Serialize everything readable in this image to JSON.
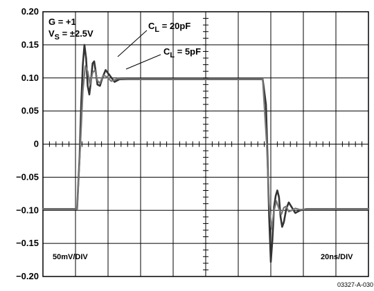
{
  "chart_data": {
    "type": "line",
    "title": "",
    "xlabel": "",
    "ylabel": "",
    "ylim": [
      -0.2,
      0.2
    ],
    "xlim": [
      0,
      200
    ],
    "y_ticks": [
      "0.20",
      "0.15",
      "0.10",
      "0.05",
      "0",
      "−0.05",
      "−0.10",
      "−0.15",
      "−0.20"
    ],
    "grid": true,
    "series": [
      {
        "name": "C_L = 20pF",
        "color": "#333333",
        "x": [
          0,
          21,
          22.5,
          23.5,
          24.5,
          25.5,
          26.5,
          27.5,
          28.5,
          29.5,
          30.5,
          31.5,
          32.5,
          33.5,
          35,
          36.5,
          38.5,
          41,
          44,
          47,
          52,
          70,
          110,
          135,
          137,
          138,
          139,
          140,
          141,
          142,
          143,
          144,
          145,
          146,
          147,
          148,
          149.5,
          151,
          153,
          155,
          158,
          162,
          200
        ],
        "y": [
          -0.098,
          -0.098,
          -0.02,
          0.06,
          0.12,
          0.15,
          0.13,
          0.088,
          0.075,
          0.095,
          0.122,
          0.125,
          0.108,
          0.09,
          0.088,
          0.1,
          0.112,
          0.104,
          0.094,
          0.098,
          0.098,
          0.098,
          0.098,
          0.098,
          0.06,
          -0.02,
          -0.11,
          -0.178,
          -0.145,
          -0.095,
          -0.078,
          -0.07,
          -0.08,
          -0.11,
          -0.125,
          -0.118,
          -0.098,
          -0.088,
          -0.096,
          -0.104,
          -0.1,
          -0.098,
          -0.098
        ]
      },
      {
        "name": "C_L = 5pF",
        "color": "#777777",
        "x": [
          0,
          21,
          23,
          24.5,
          26,
          27.5,
          29,
          30.5,
          32,
          33.5,
          35,
          37,
          39,
          42,
          46,
          52,
          70,
          110,
          135,
          137.5,
          139,
          140.5,
          142,
          143.5,
          145,
          146.5,
          148,
          149.5,
          151,
          153,
          155,
          158,
          162,
          200
        ],
        "y": [
          -0.098,
          -0.098,
          0.0,
          0.08,
          0.118,
          0.11,
          0.09,
          0.108,
          0.112,
          0.096,
          0.092,
          0.104,
          0.102,
          0.095,
          0.099,
          0.098,
          0.098,
          0.098,
          0.098,
          0.0,
          -0.09,
          -0.128,
          -0.1,
          -0.086,
          -0.098,
          -0.106,
          -0.096,
          -0.094,
          -0.102,
          -0.1,
          -0.097,
          -0.099,
          -0.098,
          -0.098
        ]
      }
    ]
  },
  "annotations": {
    "gain": "G = +1",
    "supply_main": "V",
    "supply_sub": "S",
    "supply_rest": " = ±2.5V",
    "cl20_main": "C",
    "cl20_sub": "L",
    "cl20_rest": " = 20pF",
    "cl5_main": "C",
    "cl5_sub": "L",
    "cl5_rest": " = 5pF",
    "vertical_scale": "50mV/DIV",
    "horizontal_scale": "20ns/DIV",
    "figure_id": "03327-A-030"
  }
}
